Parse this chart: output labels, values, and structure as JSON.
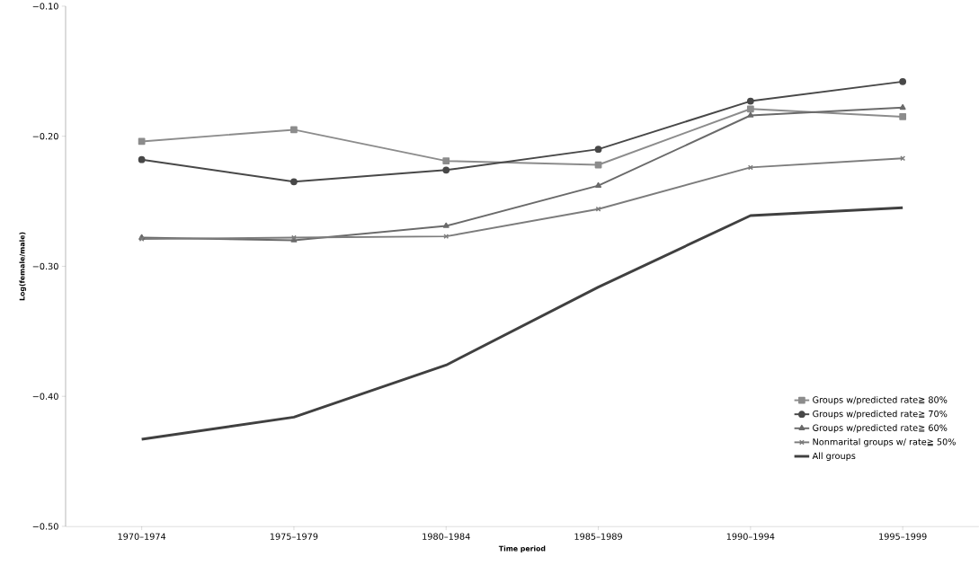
{
  "chart_data": {
    "type": "line",
    "xlabel": "Time period",
    "ylabel": "Log(female/male)",
    "categories": [
      "1970–1974",
      "1975–1979",
      "1980–1984",
      "1985–1989",
      "1990–1994",
      "1995–1999"
    ],
    "ylim": [
      -0.5,
      -0.1
    ],
    "yticks": [
      {
        "value": -0.5,
        "label": "−0.50"
      },
      {
        "value": -0.4,
        "label": "−0.40"
      },
      {
        "value": -0.3,
        "label": "−0.30"
      },
      {
        "value": -0.2,
        "label": "−0.20"
      },
      {
        "value": -0.1,
        "label": "−0.10"
      }
    ],
    "grid": false,
    "legend": "bottom right",
    "series": [
      {
        "name": "Groups w/predicted rate≧ 80%",
        "color": "#8c8c8c",
        "marker": "square",
        "values": [
          -0.204,
          -0.195,
          -0.219,
          -0.222,
          -0.179,
          -0.185
        ]
      },
      {
        "name": "Groups w/predicted rate≧ 70%",
        "color": "#484848",
        "marker": "circle",
        "values": [
          -0.218,
          -0.235,
          -0.226,
          -0.21,
          -0.173,
          -0.158
        ]
      },
      {
        "name": "Groups w/predicted rate≧ 60%",
        "color": "#6a6a6a",
        "marker": "triangle",
        "values": [
          -0.278,
          -0.28,
          -0.269,
          -0.238,
          -0.184,
          -0.178
        ]
      },
      {
        "name": "Nonmarital groups w/ rate≧ 50%",
        "color": "#7c7c7c",
        "marker": "cross",
        "values": [
          -0.279,
          -0.278,
          -0.277,
          -0.256,
          -0.224,
          -0.217
        ]
      },
      {
        "name": "All groups",
        "color": "#404040",
        "marker": "none",
        "values": [
          -0.433,
          -0.416,
          -0.376,
          -0.316,
          -0.261,
          -0.255
        ]
      }
    ]
  }
}
